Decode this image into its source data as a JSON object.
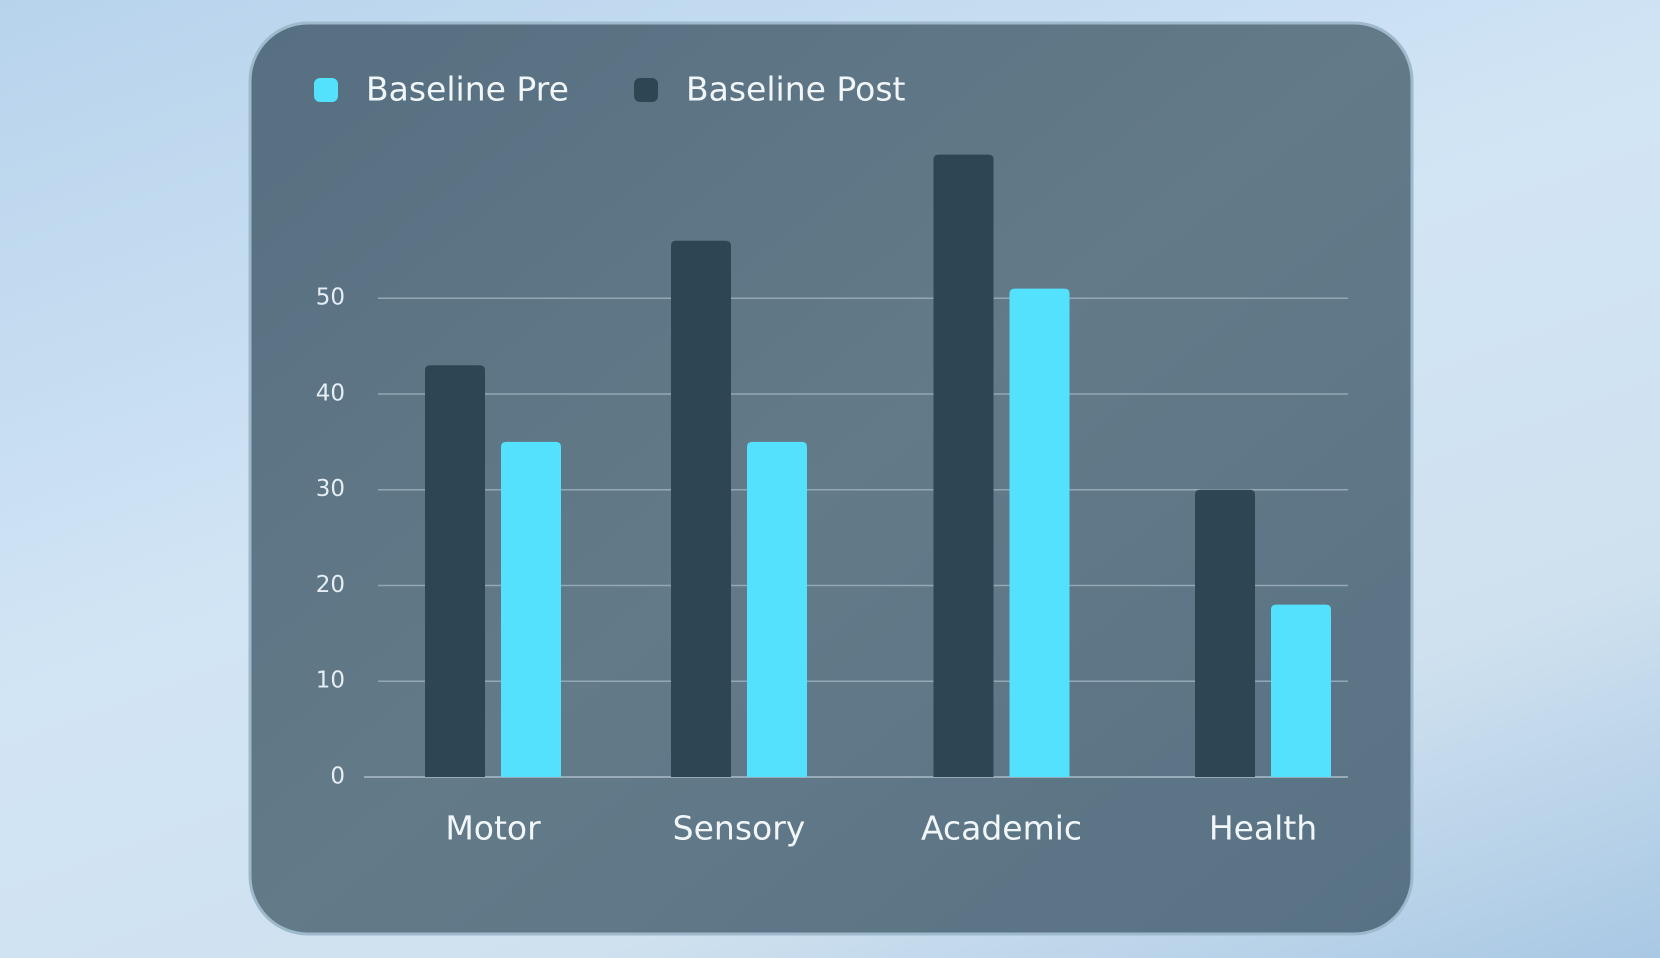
{
  "chart_data": {
    "type": "bar",
    "categories": [
      "Motor",
      "Sensory",
      "Academic",
      "Health"
    ],
    "series": [
      {
        "name": "Baseline Pre",
        "color": "#54e1fd",
        "values": [
          35,
          35,
          51,
          18
        ]
      },
      {
        "name": "Baseline Post",
        "color": "#2e4653",
        "values": [
          43,
          56,
          65,
          30
        ]
      }
    ],
    "ylim": [
      0,
      65
    ],
    "yticks": [
      0,
      10,
      20,
      30,
      40,
      50
    ],
    "grid": true,
    "legend": "top-left"
  }
}
